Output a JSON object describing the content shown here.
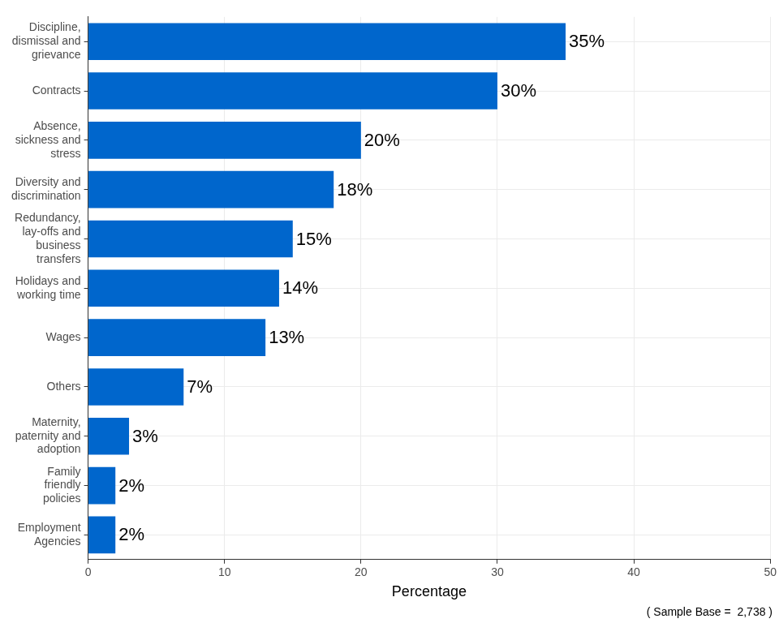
{
  "chart_data": {
    "type": "bar",
    "orientation": "horizontal",
    "categories": [
      "Discipline, dismissal and grievance",
      "Contracts",
      "Absence, sickness and stress",
      "Diversity and discrimination",
      "Redundancy, lay-offs and business transfers",
      "Holidays and working time",
      "Wages",
      "Others",
      "Maternity, paternity and adoption",
      "Family friendly policies",
      "Employment Agencies"
    ],
    "values": [
      35,
      30,
      20,
      18,
      15,
      14,
      13,
      7,
      3,
      2,
      2
    ],
    "value_labels": [
      "35%",
      "30%",
      "20%",
      "18%",
      "15%",
      "14%",
      "13%",
      "7%",
      "3%",
      "2%",
      "2%"
    ],
    "data_labels": true,
    "color": "#0066cc",
    "x_label": "Percentage",
    "xlim": [
      0,
      50
    ],
    "xticks": [
      0,
      10,
      20,
      30,
      40,
      50
    ],
    "grid": true,
    "annotations": [
      "( Sample Base =  2,738 )"
    ]
  }
}
